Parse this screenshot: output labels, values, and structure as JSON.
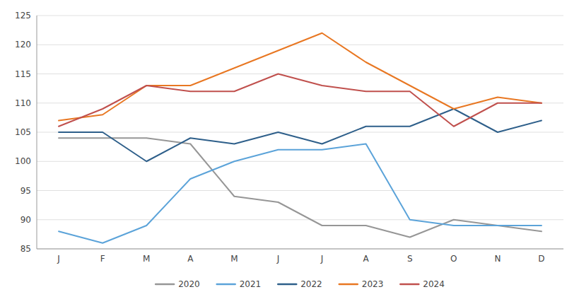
{
  "chart_data": {
    "type": "line",
    "categories": [
      "J",
      "F",
      "M",
      "A",
      "M",
      "J",
      "J",
      "A",
      "S",
      "O",
      "N",
      "D"
    ],
    "series": [
      {
        "name": "2020",
        "color": "#969696",
        "values": [
          104,
          104,
          104,
          103,
          94,
          93,
          89,
          89,
          87,
          90,
          89,
          88
        ]
      },
      {
        "name": "2021",
        "color": "#5BA3D9",
        "values": [
          88,
          86,
          89,
          97,
          100,
          102,
          102,
          103,
          90,
          89,
          89,
          89
        ]
      },
      {
        "name": "2022",
        "color": "#2E5F8A",
        "values": [
          105,
          105,
          100,
          104,
          103,
          105,
          103,
          106,
          106,
          109,
          105,
          107
        ]
      },
      {
        "name": "2023",
        "color": "#E87722",
        "values": [
          107,
          108,
          113,
          113,
          116,
          119,
          122,
          117,
          113,
          109,
          111,
          110
        ]
      },
      {
        "name": "2024",
        "color": "#C0504D",
        "values": [
          106,
          109,
          113,
          112,
          112,
          115,
          113,
          112,
          112,
          106,
          110,
          110
        ]
      }
    ],
    "ylim": [
      85,
      125
    ],
    "yticks": [
      85,
      90,
      95,
      100,
      105,
      110,
      115,
      120,
      125
    ],
    "grid": true,
    "legend": "bottom"
  }
}
